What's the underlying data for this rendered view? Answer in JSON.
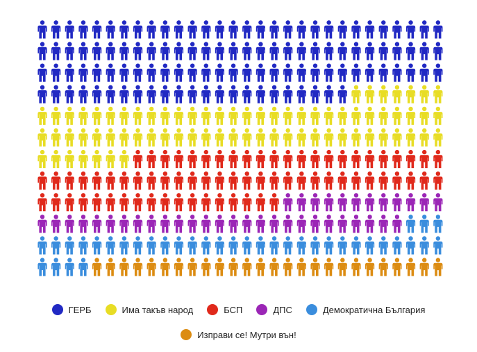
{
  "chart_data": {
    "type": "pictogram",
    "columns": 30,
    "rows": 12,
    "series": [
      {
        "name": "ГЕРБ",
        "value": 113,
        "color": "#2129c3"
      },
      {
        "name": "Има такъв народ",
        "value": 74,
        "color": "#e8dd25"
      },
      {
        "name": "БСП",
        "value": 71,
        "color": "#e0291b"
      },
      {
        "name": "ДПС",
        "value": 39,
        "color": "#9b26b6"
      },
      {
        "name": "Демократична България",
        "value": 37,
        "color": "#3a8ddd"
      },
      {
        "name": "Изправи се! Мутри вън!",
        "value": 26,
        "color": "#dc8c12"
      }
    ]
  },
  "legend": {
    "row1": [
      {
        "label": "ГЕРБ",
        "color": "#2129c3"
      },
      {
        "label": "Има такъв народ",
        "color": "#e8dd25"
      },
      {
        "label": "БСП",
        "color": "#e0291b"
      },
      {
        "label": "ДПС",
        "color": "#9b26b6"
      },
      {
        "label": "Демократична България",
        "color": "#3a8ddd"
      }
    ],
    "row2": [
      {
        "label": "Изправи се! Мутри вън!",
        "color": "#dc8c12"
      }
    ]
  }
}
